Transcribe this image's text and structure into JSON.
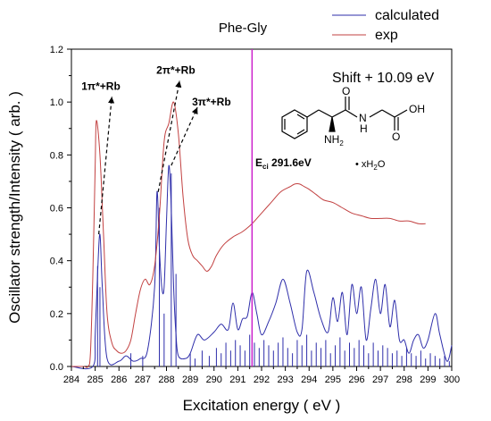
{
  "chart_data": {
    "type": "line",
    "title": "Phe-Gly",
    "xlabel": "Excitation energy ( eV )",
    "ylabel": "Oscillator strength/Intensity ( arb. )",
    "xlim": [
      284,
      300
    ],
    "ylim": [
      0,
      1.2
    ],
    "xticks": [
      "284",
      "285",
      "286",
      "287",
      "288",
      "289",
      "290",
      "291",
      "292",
      "293",
      "294",
      "295",
      "296",
      "297",
      "298",
      "299",
      "300"
    ],
    "yticks": [
      "0.0",
      "0.2",
      "0.4",
      "0.6",
      "0.8",
      "1.0",
      "1.2"
    ],
    "grid": false,
    "legend_position": "top-right",
    "colors": {
      "calculated": "#2e2eaa",
      "exp": "#c24141",
      "marker": "#cc22cc"
    },
    "series": [
      {
        "name": "calculated",
        "x": [
          284.0,
          284.9,
          285.0,
          285.1,
          285.2,
          285.3,
          285.5,
          286.0,
          286.3,
          286.6,
          286.9,
          287.2,
          287.5,
          287.6,
          287.7,
          287.8,
          287.9,
          288.0,
          288.1,
          288.2,
          288.3,
          288.4,
          288.5,
          288.8,
          289.0,
          289.3,
          289.6,
          290.0,
          290.3,
          290.6,
          290.8,
          291.0,
          291.2,
          291.4,
          291.6,
          291.8,
          292.0,
          292.3,
          292.6,
          292.9,
          293.2,
          293.5,
          293.7,
          293.9,
          294.2,
          294.5,
          294.8,
          295.0,
          295.2,
          295.4,
          295.6,
          295.8,
          296.0,
          296.2,
          296.4,
          296.6,
          296.8,
          297.0,
          297.2,
          297.4,
          297.6,
          297.8,
          298.0,
          298.2,
          298.4,
          298.6,
          298.8,
          299.0,
          299.3,
          299.5,
          299.8,
          300.0
        ],
        "y": [
          0.0,
          0.0,
          0.12,
          0.35,
          0.5,
          0.3,
          0.03,
          0.02,
          0.04,
          0.02,
          0.03,
          0.06,
          0.3,
          0.66,
          0.45,
          0.3,
          0.3,
          0.55,
          0.76,
          0.6,
          0.3,
          0.12,
          0.04,
          0.03,
          0.05,
          0.12,
          0.1,
          0.13,
          0.16,
          0.14,
          0.24,
          0.14,
          0.18,
          0.19,
          0.28,
          0.2,
          0.12,
          0.17,
          0.24,
          0.33,
          0.24,
          0.13,
          0.14,
          0.36,
          0.28,
          0.18,
          0.13,
          0.26,
          0.17,
          0.28,
          0.12,
          0.31,
          0.2,
          0.3,
          0.1,
          0.22,
          0.33,
          0.2,
          0.31,
          0.15,
          0.25,
          0.1,
          0.1,
          0.05,
          0.1,
          0.12,
          0.07,
          0.1,
          0.2,
          0.12,
          0.02,
          0.08
        ]
      },
      {
        "name": "exp",
        "x": [
          284.0,
          284.5,
          284.7,
          284.8,
          284.9,
          285.0,
          285.05,
          285.2,
          285.35,
          285.5,
          285.7,
          285.9,
          286.1,
          286.3,
          286.5,
          286.7,
          286.9,
          287.1,
          287.3,
          287.5,
          287.7,
          287.9,
          288.1,
          288.3,
          288.5,
          288.7,
          288.9,
          289.1,
          289.3,
          289.5,
          289.7,
          289.9,
          290.1,
          290.4,
          290.8,
          291.2,
          291.6,
          292.0,
          292.4,
          292.8,
          293.2,
          293.4,
          293.6,
          293.8,
          294.0,
          294.3,
          294.6,
          295.0,
          295.4,
          295.8,
          296.2,
          296.6,
          297.0,
          297.4,
          297.8,
          298.2,
          298.6,
          298.9
        ],
        "y": [
          0.0,
          0.0,
          0.0,
          0.05,
          0.34,
          0.76,
          0.93,
          0.8,
          0.5,
          0.2,
          0.09,
          0.06,
          0.05,
          0.06,
          0.1,
          0.2,
          0.29,
          0.33,
          0.31,
          0.38,
          0.57,
          0.85,
          0.92,
          1.0,
          0.88,
          0.64,
          0.48,
          0.42,
          0.4,
          0.38,
          0.36,
          0.38,
          0.42,
          0.46,
          0.49,
          0.51,
          0.54,
          0.58,
          0.62,
          0.66,
          0.68,
          0.69,
          0.69,
          0.68,
          0.67,
          0.65,
          0.63,
          0.62,
          0.6,
          0.58,
          0.57,
          0.56,
          0.56,
          0.56,
          0.55,
          0.55,
          0.54,
          0.54
        ]
      }
    ],
    "stick_spectrum": {
      "x": [
        285.1,
        285.2,
        286.5,
        287.0,
        287.7,
        287.9,
        288.2,
        288.4,
        289.0,
        289.2,
        289.5,
        289.8,
        290.1,
        290.3,
        290.5,
        290.7,
        290.9,
        291.1,
        291.3,
        291.5,
        291.7,
        291.9,
        292.1,
        292.3,
        292.5,
        292.7,
        292.9,
        293.1,
        293.3,
        293.5,
        293.7,
        293.9,
        294.1,
        294.3,
        294.5,
        294.7,
        294.9,
        295.1,
        295.3,
        295.5,
        295.7,
        295.9,
        296.1,
        296.3,
        296.5,
        296.7,
        296.9,
        297.1,
        297.3,
        297.5,
        297.7,
        297.9,
        298.1,
        298.3,
        298.5,
        298.7,
        298.9,
        299.1,
        299.3,
        299.5,
        299.7,
        299.9
      ],
      "y": [
        0.38,
        0.3,
        0.05,
        0.04,
        0.6,
        0.2,
        0.73,
        0.35,
        0.05,
        0.03,
        0.06,
        0.04,
        0.07,
        0.05,
        0.09,
        0.06,
        0.1,
        0.08,
        0.06,
        0.12,
        0.09,
        0.07,
        0.1,
        0.08,
        0.06,
        0.09,
        0.11,
        0.07,
        0.05,
        0.1,
        0.08,
        0.12,
        0.06,
        0.09,
        0.07,
        0.1,
        0.05,
        0.08,
        0.11,
        0.06,
        0.09,
        0.07,
        0.1,
        0.08,
        0.05,
        0.09,
        0.06,
        0.08,
        0.07,
        0.05,
        0.06,
        0.04,
        0.07,
        0.05,
        0.04,
        0.06,
        0.03,
        0.05,
        0.04,
        0.03,
        0.04,
        0.02
      ]
    },
    "marker_line": {
      "x": 291.6,
      "label_main": "E",
      "label_sub": "ci",
      "label_value": " 291.6eV"
    },
    "annotations": [
      {
        "label": "1π*+Rb",
        "from": [
          285.15,
          0.5
        ],
        "to": [
          285.7,
          1.02
        ]
      },
      {
        "label": "2π*+Rb",
        "from": [
          287.65,
          0.66
        ],
        "to": [
          288.55,
          1.08
        ]
      },
      {
        "label": "3π*+Rb",
        "from": [
          288.2,
          0.76
        ],
        "to": [
          289.3,
          0.98
        ]
      }
    ],
    "shift_label": "Shift + 10.09 eV"
  },
  "molecule": {
    "nh2": "NH",
    "nh2_sub": "2",
    "nh": "N",
    "nh_h": "H",
    "oh": "OH",
    "o1": "O",
    "o2": "O",
    "water": "• xH",
    "water_sub": "2",
    "water_end": "O"
  }
}
